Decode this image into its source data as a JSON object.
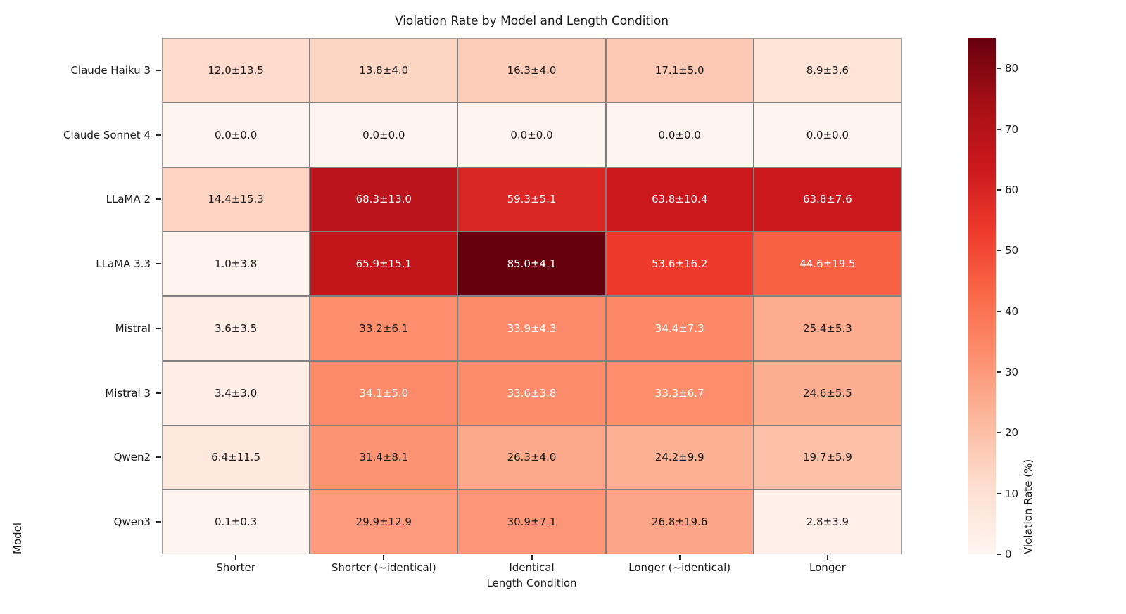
{
  "title": "Violation Rate by Model and Length Condition",
  "axes": {
    "x_label": "Length Condition",
    "y_label": "Model"
  },
  "colorbar": {
    "label": "Violation Rate (%)",
    "ticks": [
      0,
      10,
      20,
      30,
      40,
      50,
      60,
      70,
      80
    ],
    "vmin": 0,
    "vmax": 85
  },
  "colors": {
    "colormap_name": "Reds",
    "colormap_stops": [
      "#fff5f0",
      "#fee0d2",
      "#fcbba1",
      "#fc9272",
      "#fb6a4a",
      "#ef3b2c",
      "#cb181d",
      "#a50f15",
      "#67000d"
    ],
    "grid_line": "#808080",
    "outer_border": "#9e9e9e",
    "text_dark": "#1a1a1a",
    "text_light": "#ffffff"
  },
  "chart_data": {
    "type": "heatmap",
    "title": "Violation Rate by Model and Length Condition",
    "xlabel": "Length Condition",
    "ylabel": "Model",
    "x_categories": [
      "Shorter",
      "Shorter (~identical)",
      "Identical",
      "Longer (~identical)",
      "Longer"
    ],
    "y_categories": [
      "Claude Haiku 3",
      "Claude Sonnet 4",
      "LLaMA 2",
      "LLaMA 3.3",
      "Mistral",
      "Mistral 3",
      "Qwen2",
      "Qwen3"
    ],
    "values": [
      [
        12.0,
        13.8,
        16.3,
        17.1,
        8.9
      ],
      [
        0.0,
        0.0,
        0.0,
        0.0,
        0.0
      ],
      [
        14.4,
        68.3,
        59.3,
        63.8,
        63.8
      ],
      [
        1.0,
        65.9,
        85.0,
        53.6,
        44.6
      ],
      [
        3.6,
        33.2,
        33.9,
        34.4,
        25.4
      ],
      [
        3.4,
        34.1,
        33.6,
        33.3,
        24.6
      ],
      [
        6.4,
        31.4,
        26.3,
        24.2,
        19.7
      ],
      [
        0.1,
        29.9,
        30.9,
        26.8,
        2.8
      ]
    ],
    "errors": [
      [
        13.5,
        4.0,
        4.0,
        5.0,
        3.6
      ],
      [
        0.0,
        0.0,
        0.0,
        0.0,
        0.0
      ],
      [
        15.3,
        13.0,
        5.1,
        10.4,
        7.6
      ],
      [
        3.8,
        15.1,
        4.1,
        16.2,
        19.5
      ],
      [
        3.5,
        6.1,
        4.3,
        7.3,
        5.3
      ],
      [
        3.0,
        5.0,
        3.8,
        6.7,
        5.5
      ],
      [
        11.5,
        8.1,
        4.0,
        9.9,
        5.9
      ],
      [
        0.3,
        12.9,
        7.1,
        19.6,
        3.9
      ]
    ],
    "label_format": "value±error",
    "white_text": [
      [
        0,
        0,
        0,
        0,
        0
      ],
      [
        0,
        0,
        0,
        0,
        0
      ],
      [
        0,
        1,
        1,
        1,
        1
      ],
      [
        0,
        1,
        1,
        1,
        1
      ],
      [
        0,
        0,
        1,
        1,
        0
      ],
      [
        0,
        1,
        1,
        1,
        0
      ],
      [
        0,
        0,
        0,
        0,
        0
      ],
      [
        0,
        0,
        0,
        0,
        0
      ]
    ],
    "grid": false,
    "legend_position": "colorbar-right"
  }
}
